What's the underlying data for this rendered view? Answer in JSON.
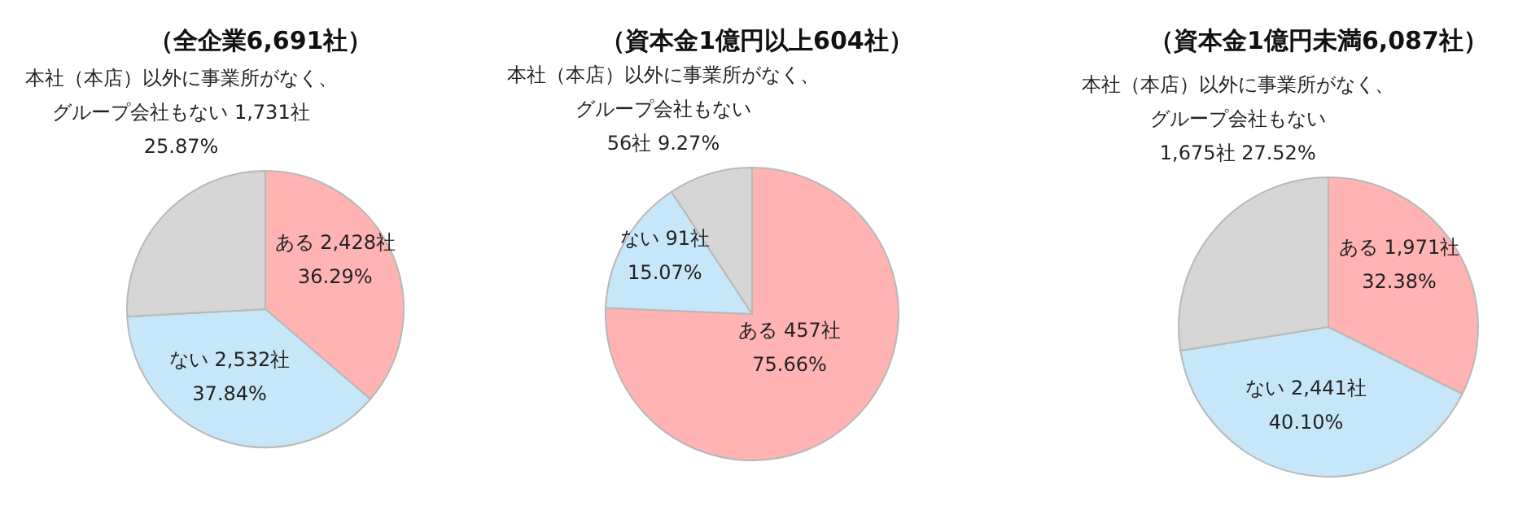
{
  "chart_data": [
    {
      "type": "pie",
      "title": "（全企業6,691社）",
      "categories": [
        "ある",
        "ない",
        "本社（本店）以外に事業所がなく、グループ会社もない"
      ],
      "values": [
        2428,
        2532,
        1731
      ],
      "colors": [
        "#ffb3b3",
        "#c6e6fa",
        "#d6d6d6"
      ],
      "value_labels": [
        "2,428社\n36.29%",
        "2,532社\n37.84%",
        "1,731社\n25.87%"
      ]
    },
    {
      "type": "pie",
      "title": "（資本金1億円以上604社）",
      "categories": [
        "ある",
        "ない",
        "本社（本店）以外に事業所がなく、グループ会社もない"
      ],
      "values": [
        457,
        91,
        56
      ],
      "colors": [
        "#ffb3b3",
        "#c6e6fa",
        "#d6d6d6"
      ],
      "value_labels": [
        "457社\n75.66%",
        "91社\n15.07%",
        "\n56社 9.27%"
      ]
    },
    {
      "type": "pie",
      "title": "（資本金1億円未満6,087社）",
      "categories": [
        "ある",
        "ない",
        "本社（本店）以外に事業所がなく、グループ会社もない"
      ],
      "values": [
        1971,
        2441,
        1675
      ],
      "colors": [
        "#ffb3b3",
        "#c6e6fa",
        "#d6d6d6"
      ],
      "value_labels": [
        "1,971社\n32.38%",
        "2,441社\n40.10%",
        "\n1,675社 27.52%"
      ]
    }
  ]
}
